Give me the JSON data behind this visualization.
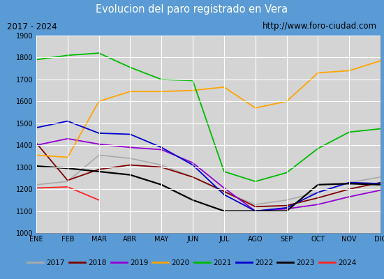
{
  "title": "Evolucion del paro registrado en Vera",
  "subtitle_left": "2017 - 2024",
  "subtitle_right": "http://www.foro-ciudad.com",
  "x_labels": [
    "ENE",
    "FEB",
    "MAR",
    "ABR",
    "MAY",
    "JUN",
    "JUL",
    "AGO",
    "SEP",
    "OCT",
    "NOV",
    "DIC"
  ],
  "ylim": [
    1000,
    1900
  ],
  "yticks": [
    1000,
    1100,
    1200,
    1300,
    1400,
    1500,
    1600,
    1700,
    1800,
    1900
  ],
  "series": {
    "2017": {
      "color": "#aaaaaa",
      "linewidth": 1.2,
      "data": [
        1220,
        1235,
        1355,
        1340,
        1310,
        1255,
        1185,
        1130,
        1150,
        1185,
        1230,
        1255
      ]
    },
    "2018": {
      "color": "#800000",
      "linewidth": 1.3,
      "data": [
        1410,
        1240,
        1290,
        1310,
        1300,
        1255,
        1190,
        1120,
        1125,
        1160,
        1200,
        1230
      ]
    },
    "2019": {
      "color": "#9400d3",
      "linewidth": 1.3,
      "data": [
        1400,
        1430,
        1405,
        1390,
        1380,
        1320,
        1205,
        1100,
        1110,
        1130,
        1165,
        1195
      ]
    },
    "2020": {
      "color": "#ffa500",
      "linewidth": 1.3,
      "data": [
        1355,
        1345,
        1600,
        1645,
        1645,
        1650,
        1665,
        1570,
        1600,
        1730,
        1740,
        1785
      ]
    },
    "2021": {
      "color": "#00bb00",
      "linewidth": 1.3,
      "data": [
        1790,
        1810,
        1820,
        1755,
        1700,
        1695,
        1280,
        1235,
        1275,
        1385,
        1460,
        1475
      ]
    },
    "2022": {
      "color": "#0000cc",
      "linewidth": 1.3,
      "data": [
        1480,
        1510,
        1455,
        1450,
        1390,
        1310,
        1175,
        1100,
        1115,
        1185,
        1230,
        1225
      ]
    },
    "2023": {
      "color": "#000000",
      "linewidth": 1.6,
      "data": [
        1305,
        1295,
        1280,
        1265,
        1220,
        1150,
        1100,
        1100,
        1100,
        1220,
        1225,
        1220
      ]
    },
    "2024": {
      "color": "#ff2222",
      "linewidth": 1.3,
      "data": [
        1205,
        1210,
        1150,
        null,
        null,
        null,
        null,
        null,
        null,
        null,
        null,
        null
      ]
    }
  },
  "title_bg_color": "#5b9bd5",
  "title_text_color": "#ffffff",
  "subtitle_bg_color": "#e8e8e8",
  "plot_bg_color": "#d4d4d4",
  "grid_color": "#ffffff",
  "fig_bg_color": "#c8c8c8",
  "outer_border_color": "#5b9bd5"
}
